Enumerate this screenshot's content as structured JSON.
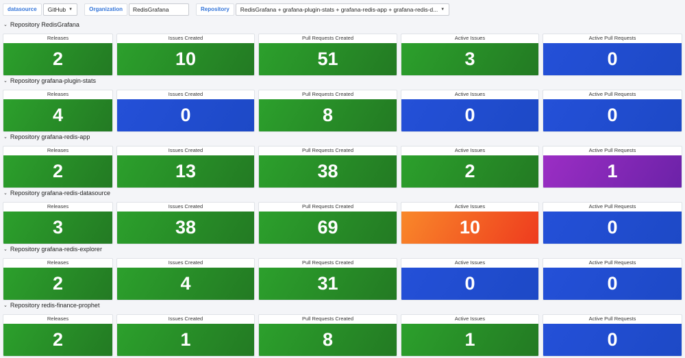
{
  "variables": {
    "datasource": {
      "label": "datasource",
      "value": "GitHub"
    },
    "organization": {
      "label": "Organization",
      "value": "RedisGrafana"
    },
    "repository": {
      "label": "Repository",
      "value": "RedisGrafana + grafana-plugin-stats + grafana-redis-app + grafana-redis-d..."
    }
  },
  "colors": {
    "green": "#2ca02c",
    "blue": "#2450d8",
    "purple": "#9b2ec4",
    "orange": "#f9882a"
  },
  "rows": [
    {
      "title": "Repository RedisGrafana",
      "panels": [
        {
          "title": "Releases",
          "value": "2",
          "color": "green"
        },
        {
          "title": "Issues Created",
          "value": "10",
          "color": "green"
        },
        {
          "title": "Pull Requests Created",
          "value": "51",
          "color": "green"
        },
        {
          "title": "Active Issues",
          "value": "3",
          "color": "green"
        },
        {
          "title": "Active Pull Requests",
          "value": "0",
          "color": "blue"
        }
      ]
    },
    {
      "title": "Repository grafana-plugin-stats",
      "panels": [
        {
          "title": "Releases",
          "value": "4",
          "color": "green"
        },
        {
          "title": "Issues Created",
          "value": "0",
          "color": "blue"
        },
        {
          "title": "Pull Requests Created",
          "value": "8",
          "color": "green"
        },
        {
          "title": "Active Issues",
          "value": "0",
          "color": "blue"
        },
        {
          "title": "Active Pull Requests",
          "value": "0",
          "color": "blue"
        }
      ]
    },
    {
      "title": "Repository grafana-redis-app",
      "panels": [
        {
          "title": "Releases",
          "value": "2",
          "color": "green"
        },
        {
          "title": "Issues Created",
          "value": "13",
          "color": "green"
        },
        {
          "title": "Pull Requests Created",
          "value": "38",
          "color": "green"
        },
        {
          "title": "Active Issues",
          "value": "2",
          "color": "green"
        },
        {
          "title": "Active Pull Requests",
          "value": "1",
          "color": "purple"
        }
      ]
    },
    {
      "title": "Repository grafana-redis-datasource",
      "panels": [
        {
          "title": "Releases",
          "value": "3",
          "color": "green"
        },
        {
          "title": "Issues Created",
          "value": "38",
          "color": "green"
        },
        {
          "title": "Pull Requests Created",
          "value": "69",
          "color": "green"
        },
        {
          "title": "Active Issues",
          "value": "10",
          "color": "orange"
        },
        {
          "title": "Active Pull Requests",
          "value": "0",
          "color": "blue"
        }
      ]
    },
    {
      "title": "Repository grafana-redis-explorer",
      "panels": [
        {
          "title": "Releases",
          "value": "2",
          "color": "green"
        },
        {
          "title": "Issues Created",
          "value": "4",
          "color": "green"
        },
        {
          "title": "Pull Requests Created",
          "value": "31",
          "color": "green"
        },
        {
          "title": "Active Issues",
          "value": "0",
          "color": "blue"
        },
        {
          "title": "Active Pull Requests",
          "value": "0",
          "color": "blue"
        }
      ]
    },
    {
      "title": "Repository redis-finance-prophet",
      "panels": [
        {
          "title": "Releases",
          "value": "2",
          "color": "green"
        },
        {
          "title": "Issues Created",
          "value": "1",
          "color": "green"
        },
        {
          "title": "Pull Requests Created",
          "value": "8",
          "color": "green"
        },
        {
          "title": "Active Issues",
          "value": "1",
          "color": "green"
        },
        {
          "title": "Active Pull Requests",
          "value": "0",
          "color": "blue"
        }
      ]
    }
  ]
}
